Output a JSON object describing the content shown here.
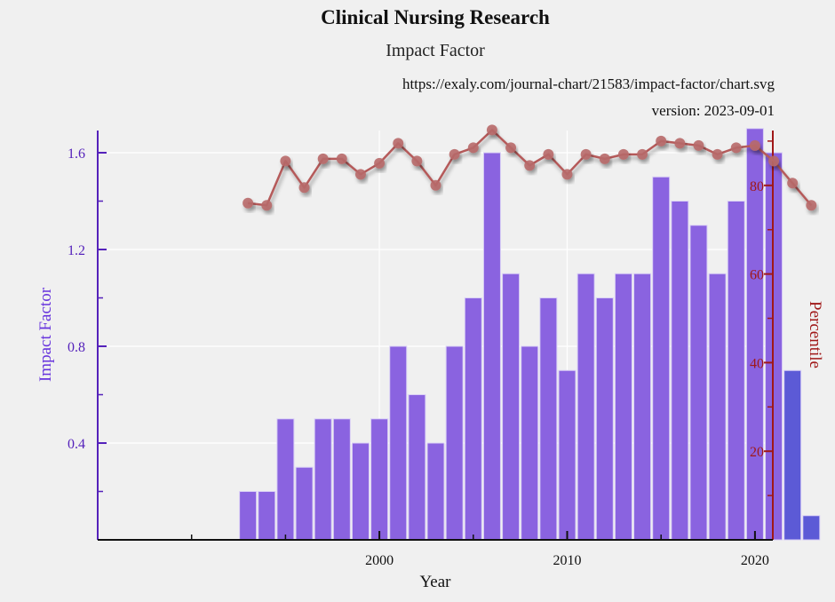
{
  "header": {
    "title": "Clinical Nursing Research",
    "subtitle": "Impact Factor",
    "url": "https://exaly.com/journal-chart/21583/impact-factor/chart.svg",
    "version": "version: 2023-09-01"
  },
  "chart_data": {
    "type": "bar",
    "xlabel": "Year",
    "ylabel": "Impact Factor",
    "y2label": "Percentile",
    "xlim": [
      1985,
      2025
    ],
    "ylim": [
      0,
      1.7
    ],
    "y2lim": [
      0,
      92
    ],
    "xticks": [
      2000,
      2010,
      2020
    ],
    "yticks": [
      0.4,
      0.8,
      1.2,
      1.6
    ],
    "y2ticks": [
      20,
      40,
      60,
      80
    ],
    "grid": true,
    "colors": {
      "bar": "#8a63e0",
      "bar_projected": "#5c5ad6",
      "line": "#b55a5a",
      "left_axis": "#5522bb",
      "right_axis": "#a01818"
    },
    "series": [
      {
        "type": "bar",
        "axis": "left",
        "x": [
          1993,
          1994,
          1995,
          1996,
          1997,
          1998,
          1999,
          2000,
          2001,
          2002,
          2003,
          2004,
          2005,
          2006,
          2007,
          2008,
          2009,
          2010,
          2011,
          2012,
          2013,
          2014,
          2015,
          2016,
          2017,
          2018,
          2019,
          2020,
          2021,
          2022,
          2023
        ],
        "values": [
          0.2,
          0.2,
          0.5,
          0.3,
          0.5,
          0.5,
          0.4,
          0.5,
          0.8,
          0.6,
          0.4,
          0.8,
          1.0,
          1.6,
          1.1,
          0.8,
          1.0,
          0.7,
          1.1,
          1.0,
          1.1,
          1.1,
          1.5,
          1.4,
          1.3,
          1.1,
          1.4,
          1.7,
          1.6,
          0.7,
          0.1
        ],
        "projected_from": 2022
      },
      {
        "type": "line",
        "axis": "right",
        "x": [
          1993,
          1994,
          1995,
          1996,
          1997,
          1998,
          1999,
          2000,
          2001,
          2002,
          2003,
          2004,
          2005,
          2006,
          2007,
          2008,
          2009,
          2010,
          2011,
          2012,
          2013,
          2014,
          2015,
          2016,
          2017,
          2018,
          2019,
          2020,
          2021,
          2022,
          2023
        ],
        "values": [
          76,
          75.5,
          85.5,
          79.5,
          86,
          86,
          82.5,
          85,
          89.5,
          85.5,
          80,
          87,
          88.5,
          92.5,
          88.5,
          84.5,
          87,
          82.5,
          87,
          86,
          87,
          87,
          90,
          89.5,
          89,
          87,
          88.5,
          89,
          85.5,
          80.5,
          75.5
        ]
      }
    ]
  }
}
